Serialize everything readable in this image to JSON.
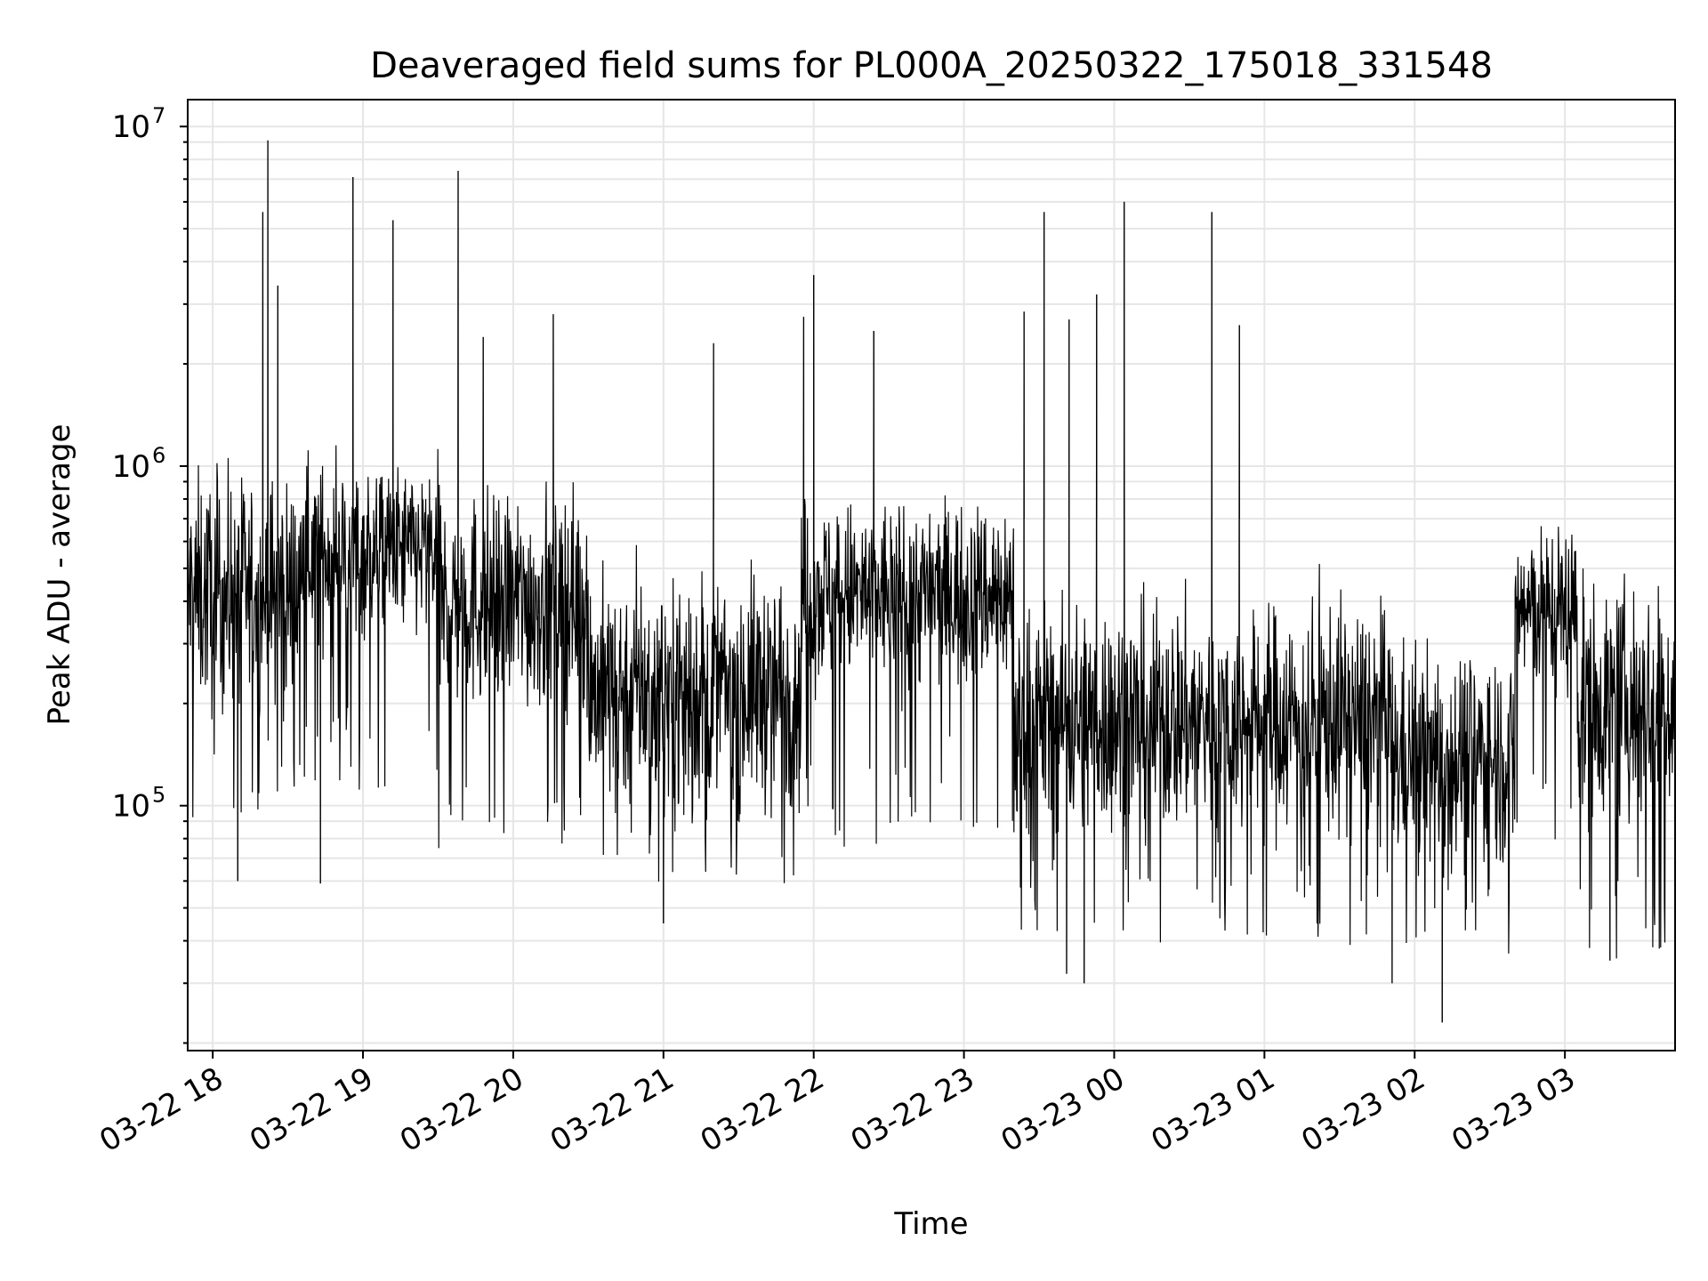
{
  "chart_data": {
    "type": "line",
    "title": "Deaveraged field sums for PL000A_20250322_175018_331548",
    "xlabel": "Time",
    "ylabel": "Peak ADU - average",
    "yscale": "log",
    "ylim": [
      19000,
      12000000
    ],
    "xlim": [
      "2025-03-22 17:50",
      "2025-03-23 03:44"
    ],
    "x_ticks": [
      "03-22 18",
      "03-22 19",
      "03-22 20",
      "03-22 21",
      "03-22 22",
      "03-22 23",
      "03-23 00",
      "03-23 01",
      "03-23 02",
      "03-23 03"
    ],
    "y_ticks": [
      {
        "value": 100000,
        "base": "10",
        "exp": "5"
      },
      {
        "value": 1000000,
        "base": "10",
        "exp": "6"
      },
      {
        "value": 10000000,
        "base": "10",
        "exp": "7"
      }
    ],
    "grid": true,
    "series": [
      {
        "color": "#000000",
        "segments": [
          {
            "start": "2025-03-22 17:50",
            "end": "2025-03-22 18:35",
            "median": 420000,
            "spread": 0.75,
            "low": 80000
          },
          {
            "start": "2025-03-22 18:35",
            "end": "2025-03-22 19:30",
            "median": 560000,
            "spread": 0.55,
            "low": 110000
          },
          {
            "start": "2025-03-22 19:30",
            "end": "2025-03-22 20:30",
            "median": 400000,
            "spread": 0.7,
            "low": 70000
          },
          {
            "start": "2025-03-22 20:30",
            "end": "2025-03-22 21:55",
            "median": 220000,
            "spread": 0.75,
            "low": 55000
          },
          {
            "start": "2025-03-22 21:55",
            "end": "2025-03-22 23:20",
            "median": 420000,
            "spread": 0.6,
            "low": 75000
          },
          {
            "start": "2025-03-22 23:20",
            "end": "2025-03-23 01:50",
            "median": 180000,
            "spread": 0.75,
            "low": 38000
          },
          {
            "start": "2025-03-23 01:50",
            "end": "2025-03-23 02:40",
            "median": 140000,
            "spread": 0.7,
            "low": 35000
          },
          {
            "start": "2025-03-23 02:40",
            "end": "2025-03-23 03:05",
            "median": 380000,
            "spread": 0.55,
            "low": 70000
          },
          {
            "start": "2025-03-23 03:05",
            "end": "2025-03-23 03:44",
            "median": 200000,
            "spread": 0.75,
            "low": 35000
          }
        ],
        "peaks": [
          {
            "x": "2025-03-22 18:20",
            "y": 5600000
          },
          {
            "x": "2025-03-22 18:22",
            "y": 9100000
          },
          {
            "x": "2025-03-22 18:26",
            "y": 3400000
          },
          {
            "x": "2025-03-22 18:56",
            "y": 7100000
          },
          {
            "x": "2025-03-22 19:12",
            "y": 5300000
          },
          {
            "x": "2025-03-22 19:38",
            "y": 7400000
          },
          {
            "x": "2025-03-22 19:48",
            "y": 2400000
          },
          {
            "x": "2025-03-22 20:16",
            "y": 2800000
          },
          {
            "x": "2025-03-22 21:20",
            "y": 2300000
          },
          {
            "x": "2025-03-22 21:56",
            "y": 2750000
          },
          {
            "x": "2025-03-22 22:00",
            "y": 3650000
          },
          {
            "x": "2025-03-22 22:24",
            "y": 2500000
          },
          {
            "x": "2025-03-22 23:24",
            "y": 2850000
          },
          {
            "x": "2025-03-22 23:32",
            "y": 5600000
          },
          {
            "x": "2025-03-22 23:42",
            "y": 2700000
          },
          {
            "x": "2025-03-22 23:53",
            "y": 3200000
          },
          {
            "x": "2025-03-23 00:04",
            "y": 6000000
          },
          {
            "x": "2025-03-23 00:39",
            "y": 5600000
          },
          {
            "x": "2025-03-23 00:50",
            "y": 2600000
          }
        ],
        "dips": [
          {
            "x": "2025-03-22 18:10",
            "y": 60000
          },
          {
            "x": "2025-03-22 18:43",
            "y": 59000
          },
          {
            "x": "2025-03-22 21:00",
            "y": 45000
          },
          {
            "x": "2025-03-22 23:41",
            "y": 32000
          },
          {
            "x": "2025-03-22 23:48",
            "y": 30000
          },
          {
            "x": "2025-03-23 01:51",
            "y": 30000
          },
          {
            "x": "2025-03-23 02:11",
            "y": 23000
          },
          {
            "x": "2025-03-23 03:18",
            "y": 35000
          }
        ]
      }
    ]
  }
}
